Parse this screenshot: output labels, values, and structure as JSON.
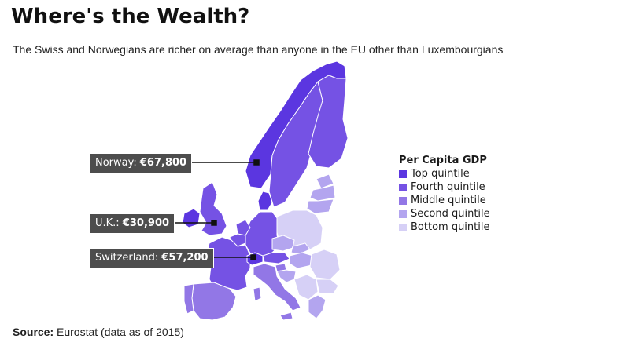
{
  "title": "Where's the Wealth?",
  "subtitle": "The Swiss and Norwegians are richer on average than anyone in the EU other than Luxembourgians",
  "legend": {
    "title": "Per Capita GDP",
    "items": [
      {
        "label": "Top quintile",
        "color": "#5b36e0"
      },
      {
        "label": "Fourth quintile",
        "color": "#7552e4"
      },
      {
        "label": "Middle quintile",
        "color": "#9277e6"
      },
      {
        "label": "Second quintile",
        "color": "#b3a5ef"
      },
      {
        "label": "Bottom quintile",
        "color": "#d6d0f6"
      }
    ]
  },
  "callouts": {
    "norway": {
      "country": "Norway:",
      "value": "€67,800"
    },
    "uk": {
      "country": "U.K.:",
      "value": "€30,900"
    },
    "switzerland": {
      "country": "Switzerland:",
      "value": "€57,200"
    }
  },
  "source": {
    "label": "Source:",
    "text": "Eurostat (data as of 2015)"
  }
}
